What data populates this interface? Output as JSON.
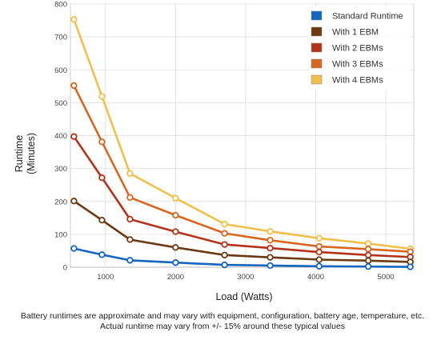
{
  "chart_data": {
    "type": "line",
    "xlabel": "Load (Watts)",
    "ylabel_lines": [
      "Runtime",
      "(Minutes)"
    ],
    "xlim": [
      500,
      5400
    ],
    "ylim": [
      0,
      800
    ],
    "xticks": [
      1000,
      2000,
      3000,
      4000,
      5000
    ],
    "yticks": [
      0,
      100,
      200,
      300,
      400,
      500,
      600,
      700,
      800
    ],
    "grid": true,
    "legend_position": "top-right",
    "x": [
      550,
      950,
      1350,
      2000,
      2700,
      3350,
      4050,
      4750,
      5350
    ],
    "series": [
      {
        "name": "Standard Runtime",
        "color": "#1565c0",
        "values": [
          57,
          38,
          21,
          14,
          7,
          5,
          3,
          2,
          1
        ]
      },
      {
        "name": "With 1 EBM",
        "color": "#6b3a10",
        "values": [
          201,
          143,
          84,
          60,
          37,
          30,
          23,
          20,
          16
        ]
      },
      {
        "name": "With 2 EBMs",
        "color": "#b5321a",
        "values": [
          397,
          272,
          146,
          108,
          69,
          58,
          46,
          37,
          31
        ]
      },
      {
        "name": "With 3 EBMs",
        "color": "#d9661f",
        "values": [
          552,
          381,
          212,
          158,
          103,
          82,
          63,
          55,
          47
        ]
      },
      {
        "name": "With 4 EBMs",
        "color": "#f0c04a",
        "values": [
          753,
          519,
          285,
          210,
          131,
          109,
          88,
          72,
          56
        ]
      }
    ]
  },
  "footnote": {
    "line1": "Battery runtimes are approximate and may vary with equipment, configuration, battery age, temperature, etc.",
    "line2": "Actual runtime may vary from +/- 15% around these typical values"
  }
}
